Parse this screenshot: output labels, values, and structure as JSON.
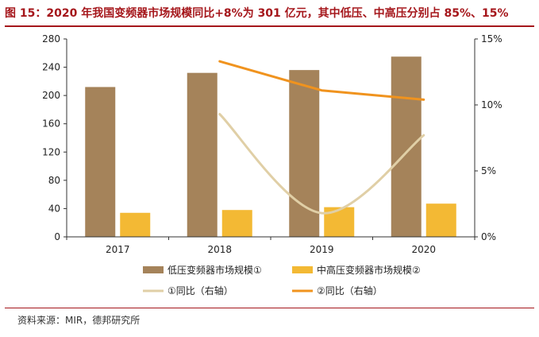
{
  "figure": {
    "title": "图 15：2020 年我国变频器市场规模同比+8%为 301 亿元，其中低压、中高压分别占 85%、15%",
    "source": "资料来源：MIR，德邦研究所",
    "colors": {
      "brand_red": "#a5161b"
    }
  },
  "chart_data": {
    "type": "bar",
    "categories": [
      "2017",
      "2018",
      "2019",
      "2020"
    ],
    "left_axis": {
      "ticks": [
        "0",
        "40",
        "80",
        "120",
        "160",
        "200",
        "240",
        "280"
      ],
      "ylim": [
        0,
        280
      ]
    },
    "right_axis": {
      "ticks": [
        "0%",
        "5%",
        "10%",
        "15%"
      ],
      "ylim": [
        0,
        15
      ]
    },
    "series": [
      {
        "name": "低压变频器市场规模①",
        "type": "bar",
        "axis": "left",
        "color": "#a5835a",
        "values": [
          212,
          232,
          236,
          255
        ]
      },
      {
        "name": "中高压变频器市场规模②",
        "type": "bar",
        "axis": "left",
        "color": "#f3b934",
        "values": [
          34,
          38,
          42,
          47
        ]
      },
      {
        "name": "①同比（右轴）",
        "type": "line",
        "axis": "right",
        "color": "#e0cfa6",
        "values": [
          null,
          9.3,
          1.8,
          7.7
        ],
        "smooth": true
      },
      {
        "name": "②同比（右轴）",
        "type": "line",
        "axis": "right",
        "color": "#f0931e",
        "values": [
          null,
          13.3,
          11.1,
          10.4
        ]
      }
    ],
    "grid": false,
    "legend": "bottom"
  }
}
